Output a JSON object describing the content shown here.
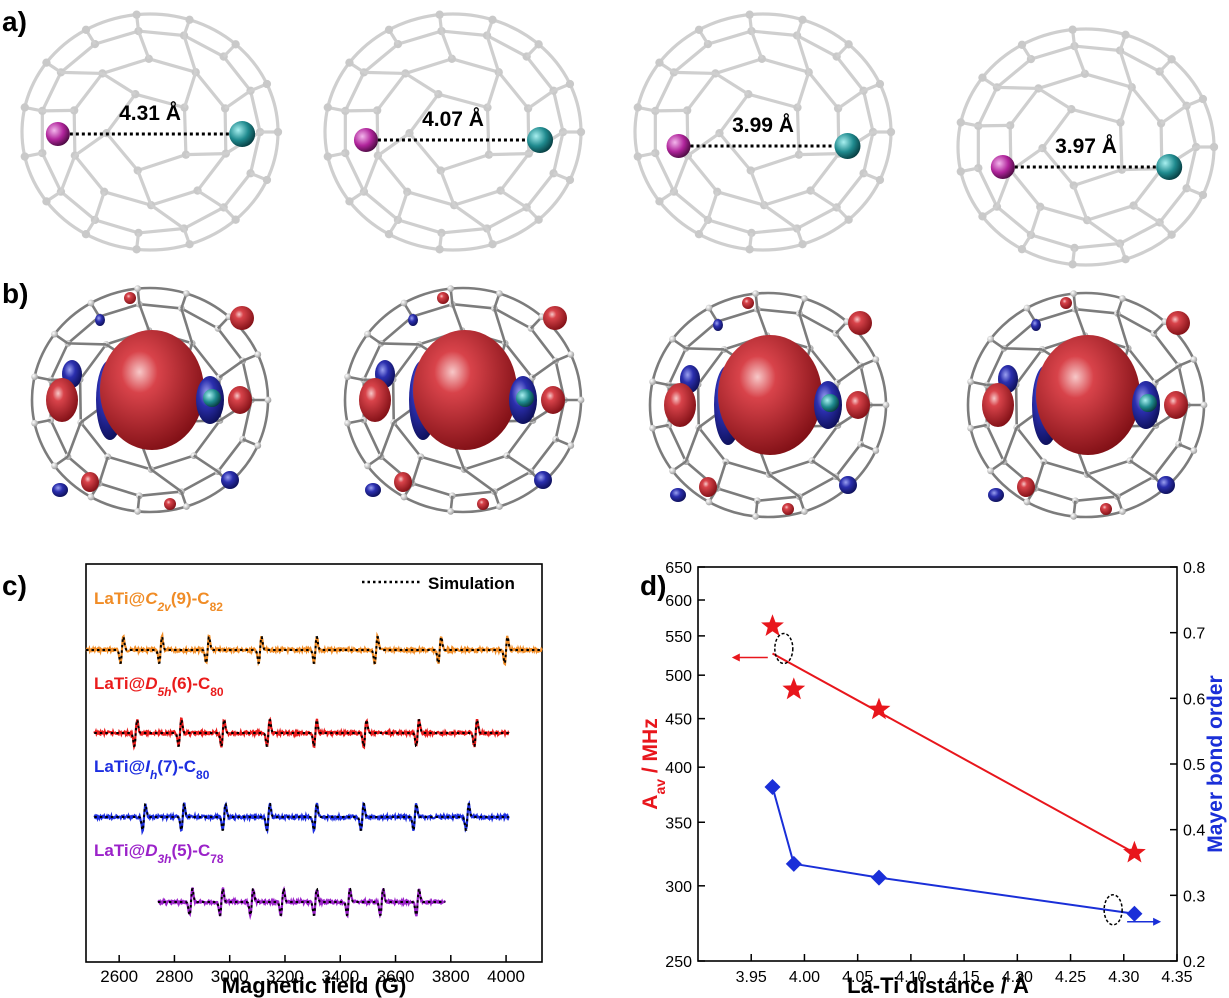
{
  "panels": {
    "a": {
      "letter": "a)",
      "molecules": [
        {
          "distance_label": "4.31 Å",
          "sep_frac": 0.72
        },
        {
          "distance_label": "4.07 Å",
          "sep_frac": 0.68
        },
        {
          "distance_label": "3.99 Å",
          "sep_frac": 0.66
        },
        {
          "distance_label": "3.97 Å",
          "sep_frac": 0.65
        }
      ],
      "colors": {
        "cage": "#cfcfcf",
        "la_atom": "#b0249b",
        "ti_atom": "#1f8a8e"
      }
    },
    "b": {
      "letter": "b)",
      "colors": {
        "positive_lobe": "#c4262e",
        "negative_lobe": "#2b2fae",
        "cage": "#7a7a7a"
      }
    }
  },
  "chart_data": [
    {
      "type": "line",
      "panel": "c)",
      "xlabel": "Magnetic field (G)",
      "xlim": [
        2480,
        4130
      ],
      "xticks": [
        "2600",
        "2800",
        "3000",
        "3200",
        "3400",
        "3600",
        "3800",
        "4000"
      ],
      "xtick_values": [
        2600,
        2800,
        3000,
        3200,
        3400,
        3600,
        3800,
        4000
      ],
      "legend": {
        "label": "Simulation",
        "placement": "top-right"
      },
      "series": [
        {
          "prefix": "LaTi@",
          "sym": "C",
          "sub": "2v",
          "mid": "(9)-C",
          "cage_sub": "82",
          "color": "#f08c26",
          "range": [
            2480,
            4130
          ],
          "lines": [
            2610,
            2750,
            2920,
            3110,
            3310,
            3530,
            3760,
            4000
          ]
        },
        {
          "prefix": "LaTi@",
          "sym": "D",
          "sub": "5h",
          "mid": "(6)-C",
          "cage_sub": "80",
          "color": "#ea1c1c",
          "range": [
            2510,
            4010
          ],
          "lines": [
            2660,
            2820,
            2975,
            3140,
            3310,
            3490,
            3680,
            3890
          ]
        },
        {
          "prefix": "LaTi@",
          "sym": "I",
          "sub": "h",
          "mid": "(7)-C",
          "cage_sub": "80",
          "color": "#1d2ee0",
          "range": [
            2510,
            4010
          ],
          "lines": [
            2690,
            2830,
            2980,
            3140,
            3310,
            3480,
            3670,
            3860
          ]
        },
        {
          "prefix": "LaTi@",
          "sym": "D",
          "sub": "3h",
          "mid": "(5)-C",
          "cage_sub": "78",
          "color": "#9b22c9",
          "range": [
            2740,
            3780
          ],
          "lines": [
            2860,
            2970,
            3080,
            3190,
            3310,
            3430,
            3550,
            3680
          ]
        }
      ]
    },
    {
      "type": "scatter",
      "panel": "d)",
      "xlabel": "La-Ti distance / Å",
      "ylabel_left_main": "A",
      "ylabel_left_sub": "av",
      "ylabel_left_unit": " / MHz",
      "ylabel_right": "Mayer bond order",
      "xlim": [
        3.9,
        4.35
      ],
      "ylim_left": [
        250,
        650
      ],
      "ylim_right": [
        0.2,
        0.8
      ],
      "left_scale": "log",
      "xticks": [
        "3.95",
        "4.00",
        "4.05",
        "4.10",
        "4.15",
        "4.20",
        "4.25",
        "4.30",
        "4.35"
      ],
      "xtick_values": [
        3.95,
        4.0,
        4.05,
        4.1,
        4.15,
        4.2,
        4.25,
        4.3,
        4.35
      ],
      "yticks_left": [
        "250",
        "300",
        "350",
        "400",
        "450",
        "500",
        "550",
        "600",
        "650"
      ],
      "ytick_values_left": [
        250,
        300,
        350,
        400,
        450,
        500,
        550,
        600,
        650
      ],
      "yticks_right": [
        "0.2",
        "0.3",
        "0.4",
        "0.5",
        "0.6",
        "0.7",
        "0.8"
      ],
      "ytick_values_right": [
        0.2,
        0.3,
        0.4,
        0.5,
        0.6,
        0.7,
        0.8
      ],
      "hyperfine": {
        "color": "#e8161c",
        "x": [
          3.97,
          3.99,
          4.07,
          4.31
        ],
        "y": [
          563,
          483,
          460,
          325
        ],
        "fit": {
          "x": [
            3.97,
            4.31
          ],
          "y": [
            527,
            325
          ]
        }
      },
      "bond_order": {
        "color": "#1a2fd8",
        "x": [
          3.97,
          3.99,
          4.07,
          4.31
        ],
        "y": [
          0.465,
          0.348,
          0.327,
          0.272
        ]
      }
    }
  ]
}
